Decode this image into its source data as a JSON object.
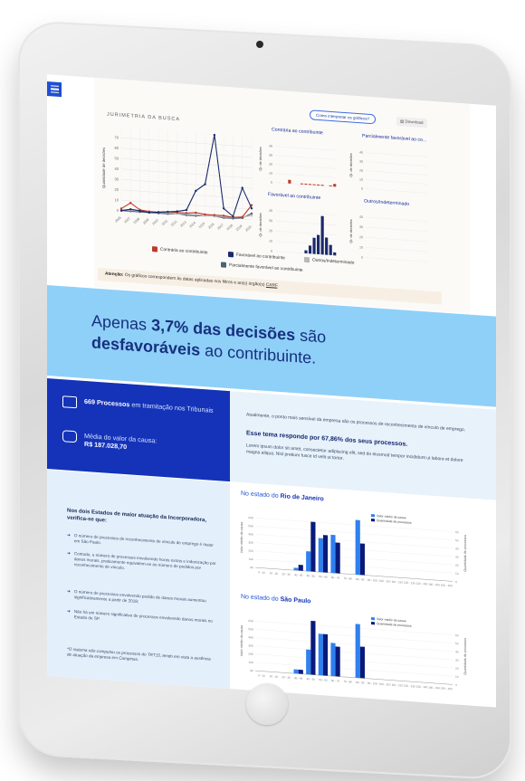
{
  "nav": {
    "menu_icon": "menu-icon"
  },
  "section_chart": {
    "title": "JURIMETRIA DA BUSCA",
    "interpret_button": "Como interpretar os gráficos?",
    "download_button": "Download",
    "main_ylabel": "Quantidade de decisões",
    "mini_ylabel": "Qt. de decisões",
    "mini_titles": [
      "Contrária ao contribuinte",
      "Parcialmente favorável ao co...",
      "Favorável ao contribuinte",
      "Outros/Indeterminado"
    ],
    "legend": [
      {
        "label": "Contrária ao contribuinte",
        "color": "#c0392b"
      },
      {
        "label": "Favorável ao contribuinte",
        "color": "#1b2a6b"
      },
      {
        "label": "Outros/Indeterminado",
        "color": "#b8b8b8"
      },
      {
        "label": "Parcialmente favorável ao contribuinte",
        "color": "#4a6276"
      }
    ],
    "attention_label": "Atenção:",
    "attention_text": " Os gráficos correspondem às datas aplicadas nos filtros e ao(s) órgão(s) ",
    "attention_link": "CARF",
    "attention_end": "."
  },
  "chart_data": [
    {
      "type": "line",
      "title": "JURIMETRIA DA BUSCA",
      "ylabel": "Quantidade de decisões",
      "ylim": [
        0,
        80
      ],
      "yticks": [
        0,
        10,
        20,
        30,
        40,
        50,
        60,
        70
      ],
      "x": [
        "2006",
        "2007",
        "2008",
        "2009",
        "2010",
        "2011",
        "2012",
        "2013",
        "2014",
        "2015",
        "2016",
        "2017",
        "2018",
        "2019",
        "2020"
      ],
      "series": [
        {
          "name": "Favorável ao contribuinte",
          "color": "#1b2a6b",
          "values": [
            0,
            2,
            1,
            0,
            1,
            2,
            3,
            5,
            24,
            31,
            79,
            9,
            2,
            30,
            11
          ]
        },
        {
          "name": "Contrária ao contribuinte",
          "color": "#c0392b",
          "values": [
            2,
            8,
            2,
            1,
            1,
            2,
            2,
            2,
            3,
            2,
            2,
            2,
            1,
            2,
            14
          ]
        },
        {
          "name": "Outros/Indeterminado",
          "color": "#b8b8b8",
          "values": [
            1,
            1,
            1,
            0,
            1,
            1,
            1,
            1,
            1,
            1,
            1,
            1,
            1,
            2,
            4
          ]
        },
        {
          "name": "Parcialmente favorável ao contribuinte",
          "color": "#4a6276",
          "values": [
            0,
            0,
            0,
            0,
            0,
            0,
            1,
            0,
            0,
            1,
            1,
            0,
            0,
            1,
            6
          ]
        }
      ]
    },
    {
      "type": "bar",
      "title": "Contrária ao contribuinte",
      "ylabel": "Qt. de decisões",
      "color": "#c0392b",
      "ylim": [
        0,
        50
      ],
      "yticks": [
        0,
        10,
        20,
        30,
        40
      ],
      "values": [
        0,
        0,
        0,
        4,
        0,
        0,
        1,
        1,
        1,
        1,
        1,
        1,
        0,
        1,
        3
      ]
    },
    {
      "type": "bar",
      "title": "Parcialmente favorável ao co...",
      "ylabel": "Qt. de decisões",
      "color": "#4a6276",
      "ylim": [
        0,
        50
      ],
      "yticks": [
        0,
        10,
        20,
        30,
        40
      ],
      "values": []
    },
    {
      "type": "bar",
      "title": "Favorável ao contribuinte",
      "ylabel": "Qt. de decisões",
      "color": "#1b2a6b",
      "ylim": [
        0,
        50
      ],
      "yticks": [
        0,
        10,
        20,
        30,
        40
      ],
      "values": [
        0,
        0,
        0,
        0,
        0,
        0,
        0,
        3,
        8,
        16,
        19,
        38,
        17,
        10,
        3
      ]
    },
    {
      "type": "bar",
      "title": "Outros/Indeterminado",
      "ylabel": "Qt. de decisões",
      "color": "#b8b8b8",
      "ylim": [
        0,
        50
      ],
      "yticks": [
        0,
        10,
        20,
        30,
        40
      ],
      "values": []
    },
    {
      "type": "bar",
      "title": "No estado do Rio de Janeiro",
      "ylabel": "Valor médio da causa",
      "y2label": "Quantidade de processos",
      "categories": [
        "0 - 10",
        "10 - 20",
        "20 - 30",
        "30 - 40",
        "40 - 50",
        "50 - 60",
        "60 - 70",
        "70 - 80",
        "80 - 90",
        "90 - 100",
        "100 - 110",
        "110 - 120",
        "120 - 130",
        "130 - 140",
        "140 - 150",
        "150 - 160"
      ],
      "series": [
        {
          "name": "Valor médio da causa",
          "color": "#2f80f0",
          "values": [
            0,
            0,
            0,
            0.3,
            2.4,
            4.1,
            4.6,
            0,
            6.6,
            0,
            0,
            0,
            0,
            0,
            0,
            0
          ]
        },
        {
          "name": "Quantidade de processos",
          "color": "#0a1a7a",
          "values": [
            0,
            0,
            0,
            0.7,
            6.0,
            4.5,
            3.7,
            0,
            3.8,
            0,
            0,
            0,
            0,
            0,
            0,
            0
          ]
        }
      ]
    },
    {
      "type": "bar",
      "title": "No estado do São Paulo",
      "ylabel": "Valor médio da causa",
      "y2label": "Quantidade de processos",
      "categories": [
        "0 - 10",
        "10 - 20",
        "20 - 30",
        "30 - 40",
        "40 - 50",
        "50 - 60",
        "60 - 70",
        "70 - 80",
        "80 - 90",
        "90 - 100",
        "100 - 110",
        "110 - 120",
        "120 - 130",
        "130 - 140",
        "140 - 150",
        "150 - 160"
      ],
      "series": [
        {
          "name": "Valor médio da causa",
          "color": "#2f80f0",
          "values": [
            0,
            0,
            0,
            0.5,
            3.0,
            5.0,
            4.0,
            0,
            6.5,
            0,
            0,
            0,
            0,
            0,
            0,
            0
          ]
        },
        {
          "name": "Quantidade de processos",
          "color": "#0a1a7a",
          "values": [
            0,
            0,
            0,
            0.5,
            6.5,
            5.0,
            3.6,
            0,
            3.8,
            0,
            0,
            0,
            0,
            0,
            0,
            0
          ]
        }
      ]
    }
  ],
  "banner": {
    "line1_pre": "Apenas ",
    "line1_strong": "3,7% das decisões",
    "line1_post": " são",
    "line2_strong": "desfavoráveis",
    "line2_post": " ao contribuinte."
  },
  "stats": {
    "processes_strong": "669 Processos",
    "processes_text": " em tramitação nos Tribunais",
    "value_text": "Média do valor da causa:",
    "value_strong": "R$ 187.028,70",
    "para1": "Atualmente, o ponto mais sensível da empresa são os processos de reconhecimento de vínculo de emprego.",
    "para_strong": "Esse tema responde por 67,86% dos seus processos.",
    "para2": "Lorem ipsum dolor sit amet, consectetur adipiscing elit, sed do eiusmod tempor incididunt ut labore et dolore magna aliqua. Nisl pretium fusce id velit ut tortor."
  },
  "insights": {
    "title": "Nos dois Estados de maior atuação da Incorporadora, verifica-se que:",
    "items": [
      "O número de processos de reconhecimento de vínculo de emprego é maior em São Paulo.",
      "Contudo, o número de processos envolvendo horas extras e indenização por danos morais, praticamente equivalem-se ao número de pedidos por reconhecimento de vínculo.",
      "O número de processos envolvendo pedido de danos morais aumentou significativamente a partir de 2018;",
      "Não há um número significativo de processos envolvendo danos morais no Estado de SP."
    ],
    "note": "*O sistema não computou os processos do TRT15, tendo em vista a ausência de atuação da empresa em Campinas."
  },
  "states": {
    "rj_pre": "No estado do ",
    "rj_strong": "Rio de Janeiro",
    "sp_pre": "No estado do ",
    "sp_strong": "São Paulo",
    "legend_valor": "Valor médio da causa",
    "legend_qtd": "Quantidade de processos"
  }
}
